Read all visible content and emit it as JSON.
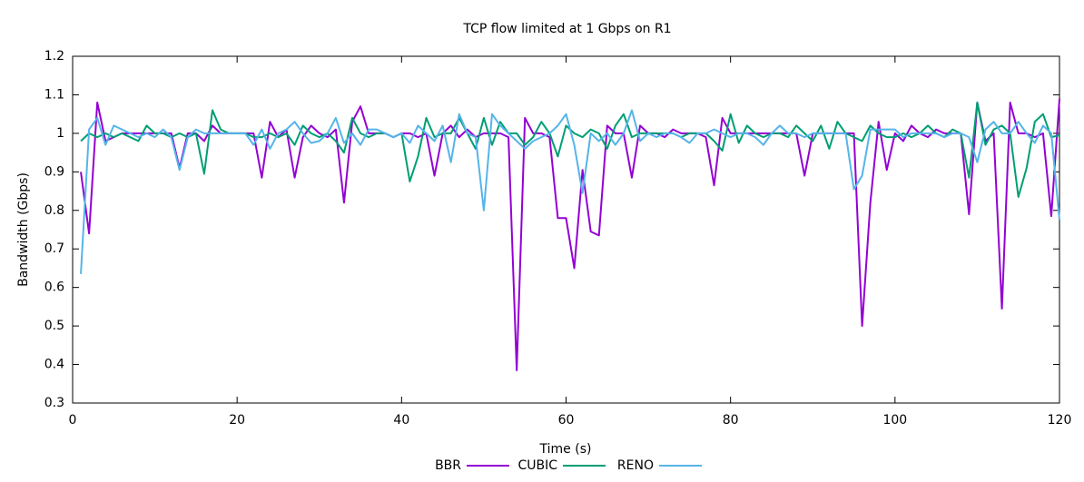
{
  "chart_data": {
    "type": "line",
    "title": "TCP flow limited at 1 Gbps on R1",
    "x_label": "Time (s)",
    "y_label": "Bandwidth (Gbps)",
    "x": [
      1,
      2,
      3,
      4,
      5,
      6,
      7,
      8,
      9,
      10,
      11,
      12,
      13,
      14,
      15,
      16,
      17,
      18,
      19,
      20,
      21,
      22,
      23,
      24,
      25,
      26,
      27,
      28,
      29,
      30,
      31,
      32,
      33,
      34,
      35,
      36,
      37,
      38,
      39,
      40,
      41,
      42,
      43,
      44,
      45,
      46,
      47,
      48,
      49,
      50,
      51,
      52,
      53,
      54,
      55,
      56,
      57,
      58,
      59,
      60,
      61,
      62,
      63,
      64,
      65,
      66,
      67,
      68,
      69,
      70,
      71,
      72,
      73,
      74,
      75,
      76,
      77,
      78,
      79,
      80,
      81,
      82,
      83,
      84,
      85,
      86,
      87,
      88,
      89,
      90,
      91,
      92,
      93,
      94,
      95,
      96,
      97,
      98,
      99,
      100,
      101,
      102,
      103,
      104,
      105,
      106,
      107,
      108,
      109,
      110,
      111,
      112,
      113,
      114,
      115,
      116,
      117,
      118,
      119,
      120
    ],
    "series": [
      {
        "name": "BBR",
        "color": "#9400d3",
        "values": [
          0.9,
          0.74,
          1.08,
          0.98,
          0.99,
          1.0,
          1.0,
          1.0,
          1.0,
          1.0,
          1.0,
          1.0,
          0.91,
          1.0,
          1.0,
          0.98,
          1.02,
          1.0,
          1.0,
          1.0,
          1.0,
          1.0,
          0.885,
          1.03,
          0.99,
          1.01,
          0.885,
          0.99,
          1.02,
          1.0,
          0.99,
          1.01,
          0.82,
          1.03,
          1.07,
          1.0,
          1.0,
          1.0,
          0.99,
          1.0,
          1.0,
          0.99,
          1.0,
          0.89,
          1.0,
          1.02,
          0.99,
          1.01,
          0.99,
          1.0,
          1.0,
          1.0,
          0.99,
          0.385,
          1.04,
          1.0,
          1.0,
          0.99,
          0.78,
          0.78,
          0.65,
          0.905,
          0.745,
          0.735,
          1.02,
          1.0,
          1.0,
          0.885,
          1.02,
          1.0,
          1.0,
          0.99,
          1.01,
          1.0,
          1.0,
          1.0,
          0.99,
          0.865,
          1.04,
          1.0,
          1.0,
          1.0,
          1.0,
          1.0,
          1.0,
          1.0,
          1.0,
          1.0,
          0.89,
          1.0,
          1.0,
          1.0,
          1.0,
          1.0,
          1.0,
          0.5,
          0.82,
          1.03,
          0.905,
          1.0,
          0.98,
          1.02,
          1.0,
          0.99,
          1.01,
          1.0,
          1.0,
          1.0,
          0.79,
          1.08,
          0.98,
          1.0,
          0.545,
          1.08,
          1.0,
          1.0,
          0.99,
          1.0,
          0.785,
          1.09
        ]
      },
      {
        "name": "CUBIC",
        "color": "#009e73",
        "values": [
          0.98,
          1.0,
          0.99,
          1.0,
          0.99,
          1.0,
          0.99,
          0.98,
          1.02,
          1.0,
          1.0,
          0.99,
          1.0,
          0.99,
          1.0,
          0.895,
          1.06,
          1.01,
          1.0,
          1.0,
          1.0,
          0.99,
          0.99,
          1.0,
          0.99,
          1.0,
          0.97,
          1.02,
          1.0,
          0.99,
          1.0,
          0.98,
          0.95,
          1.04,
          1.0,
          0.99,
          1.0,
          1.0,
          0.99,
          1.0,
          0.875,
          0.94,
          1.04,
          0.99,
          1.0,
          1.0,
          1.04,
          1.0,
          0.96,
          1.04,
          0.97,
          1.03,
          1.0,
          1.0,
          0.97,
          0.99,
          1.03,
          1.0,
          0.94,
          1.02,
          1.0,
          0.99,
          1.01,
          1.0,
          0.96,
          1.02,
          1.05,
          0.99,
          1.0,
          1.0,
          1.0,
          1.0,
          1.0,
          0.99,
          1.0,
          1.0,
          1.0,
          0.98,
          0.955,
          1.05,
          0.975,
          1.02,
          1.0,
          0.99,
          1.0,
          1.0,
          0.99,
          1.02,
          1.0,
          0.98,
          1.02,
          0.96,
          1.03,
          1.0,
          0.99,
          0.98,
          1.02,
          1.0,
          0.99,
          0.99,
          1.0,
          0.99,
          1.0,
          1.02,
          1.0,
          0.99,
          1.01,
          1.0,
          0.885,
          1.08,
          0.97,
          1.01,
          1.02,
          1.0,
          0.835,
          0.91,
          1.03,
          1.05,
          0.99,
          0.995
        ]
      },
      {
        "name": "RENO",
        "color": "#56b4e9",
        "values": [
          0.635,
          1.01,
          1.04,
          0.97,
          1.02,
          1.01,
          1.0,
          0.99,
          1.0,
          0.99,
          1.01,
          0.99,
          0.905,
          0.99,
          1.01,
          1.0,
          1.0,
          1.0,
          1.0,
          1.0,
          1.0,
          0.97,
          1.01,
          0.96,
          1.0,
          1.01,
          1.03,
          1.0,
          0.975,
          0.98,
          1.0,
          1.04,
          0.975,
          1.0,
          0.97,
          1.01,
          1.01,
          1.0,
          0.99,
          1.0,
          0.975,
          1.02,
          1.0,
          0.98,
          1.02,
          0.925,
          1.05,
          1.0,
          0.99,
          0.8,
          1.05,
          1.02,
          1.0,
          0.98,
          0.96,
          0.98,
          0.99,
          1.0,
          1.02,
          1.05,
          0.97,
          0.845,
          1.0,
          0.98,
          1.0,
          0.97,
          1.0,
          1.06,
          0.98,
          1.0,
          0.99,
          1.0,
          1.0,
          0.99,
          0.975,
          1.0,
          1.0,
          1.01,
          1.0,
          0.99,
          1.0,
          1.0,
          0.99,
          0.97,
          1.0,
          1.02,
          1.0,
          1.0,
          0.99,
          1.0,
          1.0,
          1.0,
          1.0,
          1.0,
          0.855,
          0.89,
          1.01,
          1.01,
          1.01,
          1.01,
          0.99,
          1.0,
          1.0,
          1.0,
          1.0,
          0.99,
          1.0,
          1.0,
          0.99,
          0.925,
          1.01,
          1.03,
          1.0,
          1.0,
          1.03,
          1.0,
          0.975,
          1.02,
          1.0,
          0.775
        ]
      }
    ],
    "xlim": [
      0,
      120
    ],
    "xticks": [
      0,
      20,
      40,
      60,
      80,
      100,
      120
    ],
    "ylim": [
      0.3,
      1.2
    ],
    "yticks": [
      0.3,
      0.4,
      0.5,
      0.6,
      0.7,
      0.8,
      0.9,
      1,
      1.1,
      1.2
    ],
    "grid": false,
    "legend": "bottom"
  }
}
